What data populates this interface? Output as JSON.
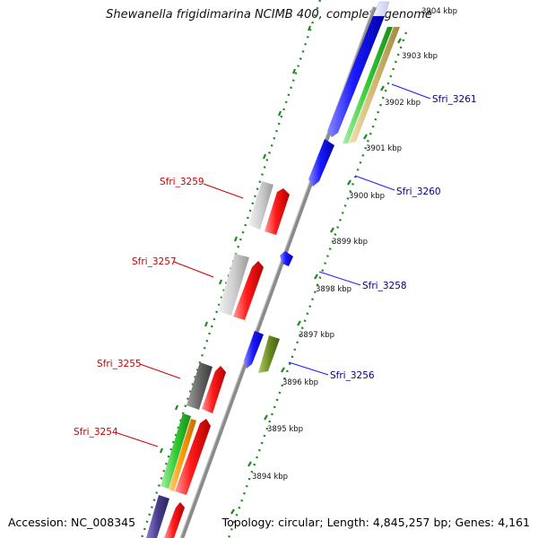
{
  "title": "Shewanella frigidimarina NCIMB 400, complete genome",
  "footer": {
    "accession": "Accession: NC_008345",
    "topology": "Topology: circular; Length: 4,845,257 bp; Genes: 4,161"
  },
  "colors": {
    "backbone": "#888888",
    "tick_marks": "#1f8a1f",
    "forward_label": "#cc0000",
    "reverse_label": "#00008b",
    "red_gene": "#ff1a1a",
    "blue_gene": "#1a1aff"
  },
  "kbp_ticks": [
    {
      "label": "3904 kbp"
    },
    {
      "label": "3903 kbp"
    },
    {
      "label": "3902 kbp"
    },
    {
      "label": "3901 kbp"
    },
    {
      "label": "3900 kbp"
    },
    {
      "label": "3899 kbp"
    },
    {
      "label": "3898 kbp"
    },
    {
      "label": "3897 kbp"
    },
    {
      "label": "3896 kbp"
    },
    {
      "label": "3895 kbp"
    },
    {
      "label": "3894 kbp"
    }
  ],
  "gene_labels": [
    {
      "label": "Sfri_3261",
      "strand": "reverse"
    },
    {
      "label": "Sfri_3260",
      "strand": "reverse"
    },
    {
      "label": "Sfri_3258",
      "strand": "reverse"
    },
    {
      "label": "Sfri_3256",
      "strand": "reverse"
    },
    {
      "label": "Sfri_3259",
      "strand": "forward"
    },
    {
      "label": "Sfri_3257",
      "strand": "forward"
    },
    {
      "label": "Sfri_3255",
      "strand": "forward"
    },
    {
      "label": "Sfri_3254",
      "strand": "forward"
    }
  ]
}
